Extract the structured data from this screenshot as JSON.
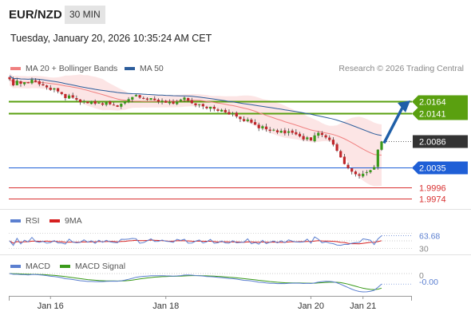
{
  "header": {
    "symbol": "EUR/NZD",
    "timeframe": "30 MIN",
    "datetime": "Tuesday, January 20, 2026 10:35:24 AM CET"
  },
  "legend": {
    "main": [
      {
        "label": "MA 20 + Bollinger Bands",
        "color": "#f08080"
      },
      {
        "label": "MA 50",
        "color": "#2c5d9b"
      }
    ],
    "rsi": [
      {
        "label": "RSI",
        "color": "#5b7fd0"
      },
      {
        "label": "9MA",
        "color": "#d62020"
      }
    ],
    "macd": [
      {
        "label": "MACD",
        "color": "#5b7fd0"
      },
      {
        "label": "MACD Signal",
        "color": "#3a9a1a"
      }
    ]
  },
  "credit": "Research © 2026 Trading Central",
  "chart_data": {
    "type": "candlestick",
    "price_ylim": [
      1.9965,
      2.021
    ],
    "levels": [
      {
        "label": "2.0164",
        "value": 2.0164,
        "kind": "resistance",
        "color": "#5aa010"
      },
      {
        "label": "2.0141",
        "value": 2.0141,
        "kind": "resistance",
        "color": "#5aa010"
      },
      {
        "label": "2.0086",
        "value": 2.0086,
        "kind": "last",
        "color": "#333333"
      },
      {
        "label": "2.0035",
        "value": 2.0035,
        "kind": "pivot",
        "color": "#1f5fd6"
      },
      {
        "label": "1.9996",
        "value": 1.9996,
        "kind": "support",
        "color": "#d83030"
      },
      {
        "label": "1.9974",
        "value": 1.9974,
        "kind": "support",
        "color": "#d83030"
      }
    ],
    "close": [
      2.0208,
      2.0196,
      2.0205,
      2.0199,
      2.0202,
      2.02,
      2.0207,
      2.0203,
      2.0198,
      2.0196,
      2.0192,
      2.0187,
      2.019,
      2.0184,
      2.0179,
      2.0171,
      2.0176,
      2.0172,
      2.0168,
      2.0163,
      2.0165,
      2.0161,
      2.0164,
      2.016,
      2.0162,
      2.0158,
      2.0163,
      2.0159,
      2.0157,
      2.0154,
      2.016,
      2.0165,
      2.0169,
      2.0173,
      2.0177,
      2.0172,
      2.017,
      2.0168,
      2.0171,
      2.0167,
      2.0164,
      2.0166,
      2.0162,
      2.0163,
      2.016,
      2.0164,
      2.0168,
      2.0172,
      2.0166,
      2.0161,
      2.0157,
      2.0159,
      2.0155,
      2.0151,
      2.0154,
      2.015,
      2.0146,
      2.0148,
      2.0143,
      2.0139,
      2.0141,
      2.0135,
      2.013,
      2.0126,
      2.0129,
      2.0123,
      2.0119,
      2.0112,
      2.0116,
      2.011,
      2.0107,
      2.0109,
      2.0104,
      2.0107,
      2.0102,
      2.0106,
      2.0103,
      2.01,
      2.0096,
      2.009,
      2.0094,
      2.0088,
      2.0098,
      2.0103,
      2.0099,
      2.0094,
      2.0089,
      2.008,
      2.0068,
      2.0055,
      2.0042,
      2.0034,
      2.0027,
      2.0022,
      2.0019,
      2.0023,
      2.0026,
      2.003,
      2.0036,
      2.007,
      2.0086
    ],
    "rsi": {
      "ylim": [
        20,
        80
      ],
      "ticks": [
        {
          "label": "63.68",
          "value": 63.68
        },
        {
          "label": "30",
          "value": 30
        }
      ],
      "last": 63.68
    },
    "macd": {
      "ticks": [
        {
          "label": "0",
          "value": 0
        },
        {
          "label": "-0.00",
          "value": -0.0001
        }
      ]
    },
    "x_tick_labels": [
      "Jan 16",
      "Jan 18",
      "Jan 20",
      "Jan 21"
    ]
  }
}
